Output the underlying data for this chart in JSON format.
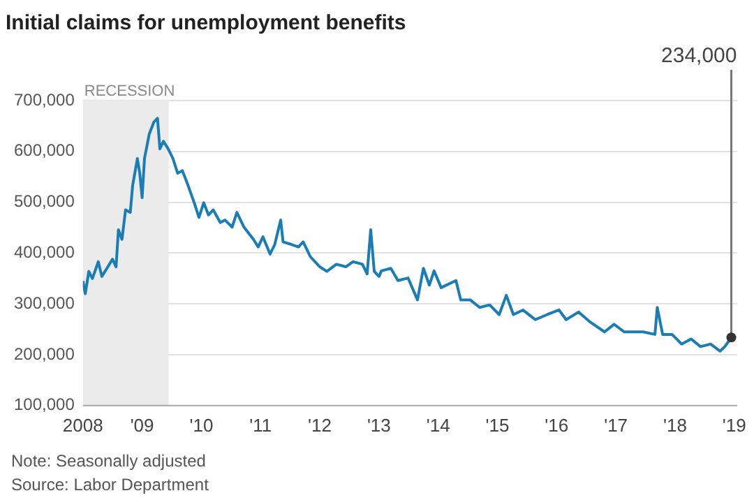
{
  "chart_data": {
    "type": "line",
    "title": "Initial claims for unemployment benefits",
    "x": [
      2008.0,
      2008.04,
      2008.1,
      2008.16,
      2008.26,
      2008.32,
      2008.4,
      2008.5,
      2008.56,
      2008.6,
      2008.66,
      2008.72,
      2008.8,
      2008.84,
      2008.92,
      2008.96,
      2009.0,
      2009.04,
      2009.12,
      2009.2,
      2009.26,
      2009.3,
      2009.36,
      2009.44,
      2009.52,
      2009.6,
      2009.68,
      2009.76,
      2009.88,
      2009.96,
      2010.04,
      2010.12,
      2010.2,
      2010.32,
      2010.4,
      2010.52,
      2010.6,
      2010.72,
      2010.88,
      2010.96,
      2011.04,
      2011.16,
      2011.24,
      2011.34,
      2011.38,
      2011.52,
      2011.64,
      2011.72,
      2011.84,
      2012.0,
      2012.12,
      2012.28,
      2012.44,
      2012.56,
      2012.72,
      2012.8,
      2012.86,
      2012.92,
      2013.0,
      2013.04,
      2013.2,
      2013.32,
      2013.49,
      2013.65,
      2013.75,
      2013.85,
      2013.93,
      2014.05,
      2014.3,
      2014.38,
      2014.54,
      2014.7,
      2014.87,
      2015.03,
      2015.15,
      2015.27,
      2015.43,
      2015.64,
      2015.84,
      2016.04,
      2016.16,
      2016.37,
      2016.57,
      2016.81,
      2016.97,
      2017.14,
      2017.46,
      2017.66,
      2017.7,
      2017.79,
      2017.95,
      2018.11,
      2018.27,
      2018.43,
      2018.6,
      2018.76,
      2018.84,
      2018.95
    ],
    "series": [
      {
        "color": "#1a7db3",
        "values": [
          345000,
          320000,
          364000,
          350000,
          383000,
          354000,
          369000,
          388000,
          373000,
          446000,
          427000,
          485000,
          480000,
          533000,
          586000,
          557000,
          509000,
          586000,
          634000,
          658000,
          665000,
          605000,
          620000,
          605000,
          586000,
          557000,
          562000,
          538000,
          499000,
          470000,
          499000,
          475000,
          485000,
          460000,
          465000,
          451000,
          480000,
          451000,
          427000,
          412000,
          432000,
          398000,
          417000,
          465000,
          422000,
          417000,
          412000,
          422000,
          393000,
          373000,
          364000,
          378000,
          373000,
          383000,
          378000,
          359000,
          446000,
          364000,
          354000,
          365000,
          370000,
          346000,
          351000,
          308000,
          370000,
          337000,
          365000,
          332000,
          346000,
          308000,
          308000,
          293000,
          298000,
          279000,
          317000,
          279000,
          288000,
          269000,
          279000,
          288000,
          269000,
          284000,
          264000,
          245000,
          260000,
          245000,
          245000,
          240000,
          293000,
          240000,
          240000,
          221000,
          231000,
          216000,
          221000,
          207000,
          216000,
          234000
        ]
      }
    ],
    "xlim": [
      2008,
      2019.05
    ],
    "xticks": [
      2008,
      {
        "value": 2009,
        "label": "'09"
      },
      {
        "value": 2010,
        "label": "'10"
      },
      {
        "value": 2011,
        "label": "'11"
      },
      {
        "value": 2012,
        "label": "'12"
      },
      {
        "value": 2013,
        "label": "'13"
      },
      {
        "value": 2014,
        "label": "'14"
      },
      {
        "value": 2015,
        "label": "'15"
      },
      {
        "value": 2016,
        "label": "'16"
      },
      {
        "value": 2017,
        "label": "'17"
      },
      {
        "value": 2018,
        "label": "'18"
      },
      {
        "value": 2019,
        "label": "'19"
      }
    ],
    "ylim": [
      100000,
      700000
    ],
    "yticks": [
      {
        "value": 100000,
        "label": "100,000"
      },
      {
        "value": 200000,
        "label": "200,000"
      },
      {
        "value": 300000,
        "label": "300,000"
      },
      {
        "value": 400000,
        "label": "400,000"
      },
      {
        "value": 500000,
        "label": "500,000"
      },
      {
        "value": 600000,
        "label": "600,000"
      },
      {
        "value": 700000,
        "label": "700,000"
      }
    ],
    "grid": "y",
    "legend": false,
    "marker": "none",
    "line_style": "solid",
    "bands": [
      {
        "axis": "x",
        "from": 2008,
        "to": 2009.45,
        "label": "RECESSION",
        "color": "#ebebeb"
      }
    ],
    "annotations": [
      {
        "text": "234,000",
        "x": 2018.95,
        "y": 234000
      },
      "Note: Seasonally adjusted",
      "Source: Labor Department"
    ]
  }
}
